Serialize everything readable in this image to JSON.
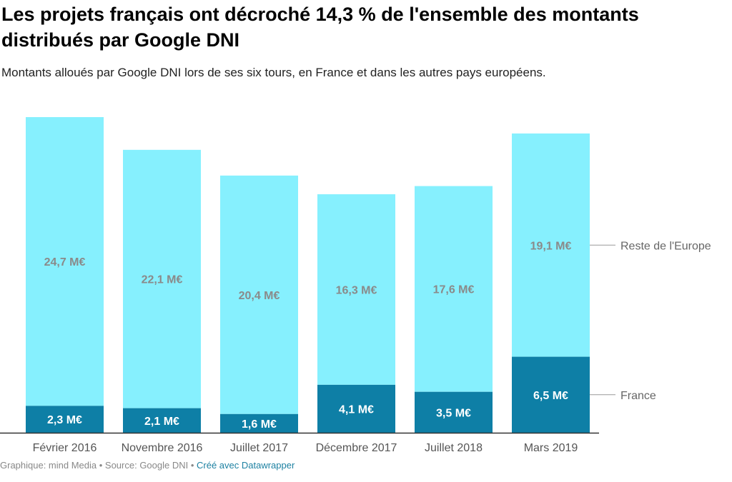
{
  "header": {
    "title": "Les projets français ont décroché 14,3 % de l'ensemble des montants distribués par Google DNI",
    "subtitle": "Montants alloués par Google DNI lors de ses six tours, en France et dans les autres pays européens."
  },
  "footer": {
    "credit": "Graphique: mind Media • Source: Google DNI • ",
    "tool": "Créé avec Datawrapper"
  },
  "colors": {
    "france": "#0e7fa6",
    "reste": "#86f0fe",
    "label_dark": "#8a8a8a",
    "label_light": "#ffffff"
  },
  "chart_data": {
    "type": "bar",
    "stacked": true,
    "categories": [
      "Février 2016",
      "Novembre 2016",
      "Juillet 2017",
      "Décembre 2017",
      "Juillet 2018",
      "Mars 2019"
    ],
    "series": [
      {
        "name": "France",
        "values": [
          2.3,
          2.1,
          1.6,
          4.1,
          3.5,
          6.5
        ],
        "labels": [
          "2,3 M€",
          "2,1 M€",
          "1,6 M€",
          "4,1 M€",
          "3,5 M€",
          "6,5 M€"
        ]
      },
      {
        "name": "Reste de l'Europe",
        "values": [
          24.7,
          22.1,
          20.4,
          16.3,
          17.6,
          19.1
        ],
        "labels": [
          "24,7 M€",
          "22,1 M€",
          "20,4 M€",
          "16,3 M€",
          "17,6 M€",
          "19,1 M€"
        ]
      }
    ],
    "ylim": [
      0,
      27
    ],
    "legend": "right, direct labels"
  }
}
